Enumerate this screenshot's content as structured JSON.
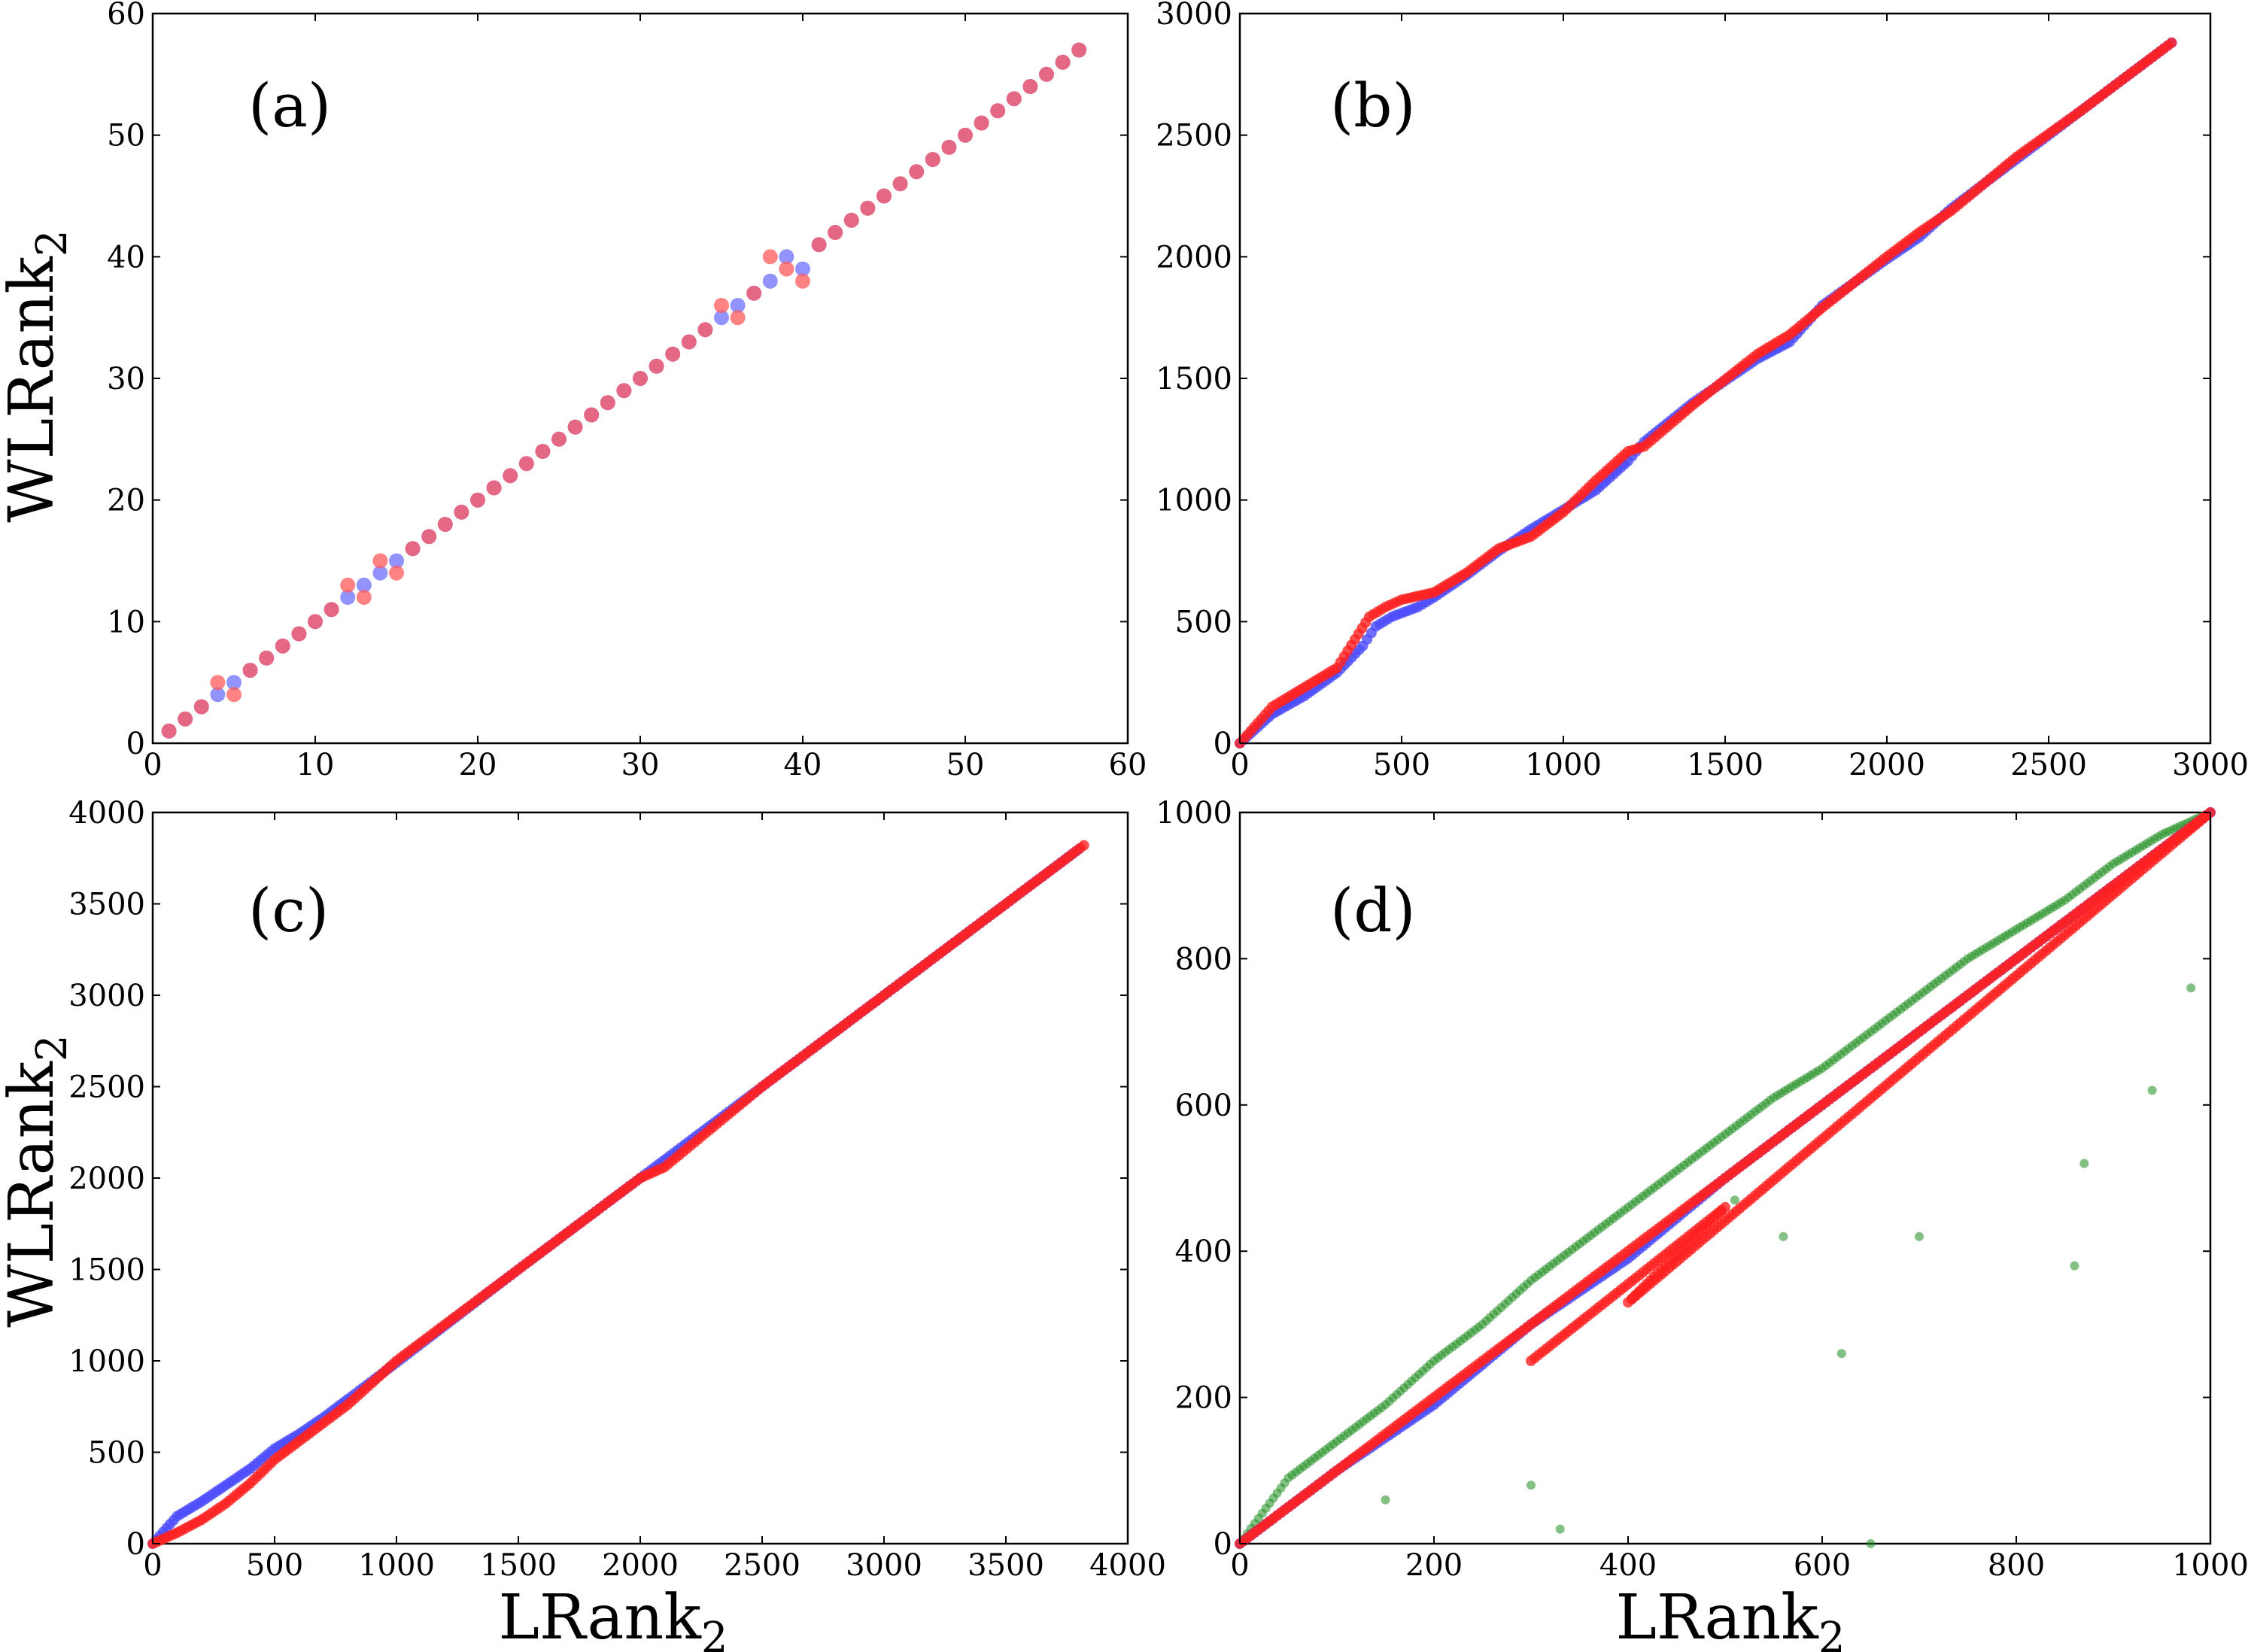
{
  "figure": {
    "ylabel": "WLRank",
    "ylabel_sub": "2",
    "xlabel": "LRank",
    "xlabel_sub": "2"
  },
  "colors": {
    "blue": "#4b4bff",
    "red": "#ff2020",
    "green": "#1e8c1e"
  },
  "chart_data": [
    {
      "id": "a",
      "label": "(a)",
      "type": "scatter",
      "xlim": [
        0,
        60
      ],
      "ylim": [
        0,
        60
      ],
      "xticks": [
        "0",
        "10",
        "20",
        "30",
        "40",
        "50",
        "60"
      ],
      "yticks": [
        "0",
        "10",
        "20",
        "30",
        "40",
        "50",
        "60"
      ],
      "series": [
        {
          "color": "#6f6fff",
          "points": [
            [
              1,
              1
            ],
            [
              2,
              2
            ],
            [
              3,
              3
            ],
            [
              4,
              4
            ],
            [
              5,
              5
            ],
            [
              6,
              6
            ],
            [
              7,
              7
            ],
            [
              8,
              8
            ],
            [
              9,
              9
            ],
            [
              10,
              10
            ],
            [
              11,
              11
            ],
            [
              12,
              12
            ],
            [
              13,
              13
            ],
            [
              14,
              14
            ],
            [
              15,
              15
            ],
            [
              16,
              16
            ],
            [
              17,
              17
            ],
            [
              18,
              18
            ],
            [
              19,
              19
            ],
            [
              20,
              20
            ],
            [
              21,
              21
            ],
            [
              22,
              22
            ],
            [
              23,
              23
            ],
            [
              24,
              24
            ],
            [
              25,
              25
            ],
            [
              26,
              26
            ],
            [
              27,
              27
            ],
            [
              28,
              28
            ],
            [
              29,
              29
            ],
            [
              30,
              30
            ],
            [
              31,
              31
            ],
            [
              32,
              32
            ],
            [
              33,
              33
            ],
            [
              34,
              34
            ],
            [
              35,
              35
            ],
            [
              36,
              36
            ],
            [
              37,
              37
            ],
            [
              38,
              38
            ],
            [
              39,
              40
            ],
            [
              40,
              39
            ],
            [
              41,
              41
            ],
            [
              42,
              42
            ],
            [
              43,
              43
            ],
            [
              44,
              44
            ],
            [
              45,
              45
            ],
            [
              46,
              46
            ],
            [
              47,
              47
            ],
            [
              48,
              48
            ],
            [
              49,
              49
            ],
            [
              50,
              50
            ],
            [
              51,
              51
            ],
            [
              52,
              52
            ],
            [
              53,
              53
            ],
            [
              54,
              54
            ],
            [
              55,
              55
            ],
            [
              56,
              56
            ],
            [
              57,
              57
            ]
          ]
        },
        {
          "color": "#ff5a5a",
          "points": [
            [
              1,
              1
            ],
            [
              2,
              2
            ],
            [
              3,
              3
            ],
            [
              4,
              5
            ],
            [
              5,
              4
            ],
            [
              6,
              6
            ],
            [
              7,
              7
            ],
            [
              8,
              8
            ],
            [
              9,
              9
            ],
            [
              10,
              10
            ],
            [
              11,
              11
            ],
            [
              12,
              13
            ],
            [
              13,
              12
            ],
            [
              14,
              15
            ],
            [
              15,
              14
            ],
            [
              16,
              16
            ],
            [
              17,
              17
            ],
            [
              18,
              18
            ],
            [
              19,
              19
            ],
            [
              20,
              20
            ],
            [
              21,
              21
            ],
            [
              22,
              22
            ],
            [
              23,
              23
            ],
            [
              24,
              24
            ],
            [
              25,
              25
            ],
            [
              26,
              26
            ],
            [
              27,
              27
            ],
            [
              28,
              28
            ],
            [
              29,
              29
            ],
            [
              30,
              30
            ],
            [
              31,
              31
            ],
            [
              32,
              32
            ],
            [
              33,
              33
            ],
            [
              34,
              34
            ],
            [
              35,
              36
            ],
            [
              36,
              35
            ],
            [
              37,
              37
            ],
            [
              38,
              40
            ],
            [
              39,
              39
            ],
            [
              40,
              38
            ],
            [
              41,
              41
            ],
            [
              42,
              42
            ],
            [
              43,
              43
            ],
            [
              44,
              44
            ],
            [
              45,
              45
            ],
            [
              46,
              46
            ],
            [
              47,
              47
            ],
            [
              48,
              48
            ],
            [
              49,
              49
            ],
            [
              50,
              50
            ],
            [
              51,
              51
            ],
            [
              52,
              52
            ],
            [
              53,
              53
            ],
            [
              54,
              54
            ],
            [
              55,
              55
            ],
            [
              56,
              56
            ],
            [
              57,
              57
            ]
          ]
        }
      ]
    },
    {
      "id": "b",
      "label": "(b)",
      "type": "scatter",
      "xlim": [
        0,
        3000
      ],
      "ylim": [
        0,
        3000
      ],
      "xticks": [
        "0",
        "500",
        "1000",
        "1500",
        "2000",
        "2500",
        "3000"
      ],
      "yticks": [
        "0",
        "500",
        "1000",
        "1500",
        "2000",
        "2500",
        "3000"
      ],
      "series": [
        {
          "color": "#4b4bff",
          "points": [
            [
              0,
              0
            ],
            [
              100,
              120
            ],
            [
              200,
              195
            ],
            [
              300,
              290
            ],
            [
              380,
              400
            ],
            [
              420,
              480
            ],
            [
              470,
              520
            ],
            [
              550,
              560
            ],
            [
              600,
              600
            ],
            [
              700,
              690
            ],
            [
              800,
              790
            ],
            [
              900,
              880
            ],
            [
              1000,
              960
            ],
            [
              1100,
              1040
            ],
            [
              1200,
              1160
            ],
            [
              1250,
              1240
            ],
            [
              1400,
              1400
            ],
            [
              1600,
              1580
            ],
            [
              1700,
              1650
            ],
            [
              1800,
              1800
            ],
            [
              2000,
              1990
            ],
            [
              2100,
              2080
            ],
            [
              2200,
              2200
            ],
            [
              2400,
              2400
            ],
            [
              2600,
              2600
            ],
            [
              2880,
              2880
            ]
          ]
        },
        {
          "color": "#ff2020",
          "points": [
            [
              0,
              0
            ],
            [
              100,
              150
            ],
            [
              200,
              230
            ],
            [
              300,
              310
            ],
            [
              400,
              520
            ],
            [
              450,
              560
            ],
            [
              500,
              590
            ],
            [
              600,
              620
            ],
            [
              700,
              700
            ],
            [
              800,
              800
            ],
            [
              900,
              850
            ],
            [
              1000,
              950
            ],
            [
              1100,
              1080
            ],
            [
              1200,
              1200
            ],
            [
              1250,
              1220
            ],
            [
              1400,
              1390
            ],
            [
              1600,
              1600
            ],
            [
              1700,
              1680
            ],
            [
              1800,
              1790
            ],
            [
              2000,
              2000
            ],
            [
              2100,
              2100
            ],
            [
              2200,
              2190
            ],
            [
              2400,
              2410
            ],
            [
              2600,
              2600
            ],
            [
              2880,
              2880
            ]
          ]
        }
      ]
    },
    {
      "id": "c",
      "label": "(c)",
      "type": "scatter",
      "xlim": [
        0,
        4000
      ],
      "ylim": [
        0,
        4000
      ],
      "xticks": [
        "0",
        "500",
        "1000",
        "1500",
        "2000",
        "2500",
        "3000",
        "3500",
        "4000"
      ],
      "yticks": [
        "0",
        "500",
        "1000",
        "1500",
        "2000",
        "2500",
        "3000",
        "3500",
        "4000"
      ],
      "series": [
        {
          "color": "#4b4bff",
          "points": [
            [
              0,
              0
            ],
            [
              100,
              150
            ],
            [
              200,
              230
            ],
            [
              300,
              320
            ],
            [
              400,
              410
            ],
            [
              500,
              520
            ],
            [
              600,
              600
            ],
            [
              700,
              690
            ],
            [
              800,
              790
            ],
            [
              1000,
              990
            ],
            [
              1500,
              1500
            ],
            [
              2000,
              2000
            ],
            [
              2500,
              2500
            ],
            [
              3000,
              3000
            ],
            [
              3500,
              3500
            ],
            [
              3800,
              3800
            ]
          ]
        },
        {
          "color": "#ff2020",
          "points": [
            [
              0,
              0
            ],
            [
              100,
              60
            ],
            [
              200,
              130
            ],
            [
              300,
              220
            ],
            [
              400,
              330
            ],
            [
              500,
              460
            ],
            [
              600,
              560
            ],
            [
              700,
              660
            ],
            [
              800,
              760
            ],
            [
              900,
              880
            ],
            [
              1000,
              1000
            ],
            [
              1500,
              1500
            ],
            [
              2000,
              2000
            ],
            [
              2100,
              2060
            ],
            [
              2500,
              2500
            ],
            [
              3000,
              3000
            ],
            [
              3500,
              3500
            ],
            [
              3820,
              3820
            ]
          ]
        }
      ]
    },
    {
      "id": "d",
      "label": "(d)",
      "type": "scatter",
      "xlim": [
        0,
        1000
      ],
      "ylim": [
        0,
        1000
      ],
      "xticks": [
        "0",
        "200",
        "400",
        "600",
        "800",
        "1000"
      ],
      "yticks": [
        "0",
        "200",
        "400",
        "600",
        "800",
        "1000"
      ],
      "series": [
        {
          "color": "#1e8c1e",
          "points": [
            [
              0,
              0
            ],
            [
              50,
              90
            ],
            [
              100,
              140
            ],
            [
              150,
              190
            ],
            [
              200,
              250
            ],
            [
              250,
              300
            ],
            [
              300,
              360
            ],
            [
              350,
              410
            ],
            [
              400,
              460
            ],
            [
              450,
              510
            ],
            [
              500,
              560
            ],
            [
              550,
              610
            ],
            [
              600,
              650
            ],
            [
              650,
              700
            ],
            [
              700,
              750
            ],
            [
              750,
              800
            ],
            [
              800,
              840
            ],
            [
              850,
              880
            ],
            [
              900,
              930
            ],
            [
              950,
              970
            ],
            [
              1000,
              1000
            ],
            [
              510,
              470
            ],
            [
              560,
              420
            ],
            [
              620,
              260
            ],
            [
              650,
              0
            ],
            [
              700,
              420
            ],
            [
              860,
              380
            ],
            [
              870,
              520
            ],
            [
              940,
              620
            ],
            [
              980,
              760
            ],
            [
              150,
              60
            ],
            [
              300,
              80
            ],
            [
              330,
              20
            ]
          ]
        },
        {
          "color": "#4b4bff",
          "points": [
            [
              0,
              0
            ],
            [
              100,
              100
            ],
            [
              200,
              190
            ],
            [
              300,
              300
            ],
            [
              400,
              390
            ],
            [
              500,
              500
            ],
            [
              600,
              600
            ],
            [
              700,
              700
            ],
            [
              800,
              800
            ],
            [
              900,
              900
            ],
            [
              1000,
              1000
            ]
          ]
        },
        {
          "color": "#ff2020",
          "points": [
            [
              0,
              0
            ],
            [
              100,
              100
            ],
            [
              200,
              200
            ],
            [
              300,
              300
            ],
            [
              400,
              400
            ],
            [
              500,
              500
            ],
            [
              600,
              600
            ],
            [
              700,
              700
            ],
            [
              800,
              800
            ],
            [
              900,
              900
            ],
            [
              1000,
              1000
            ],
            [
              400,
              330
            ],
            [
              500,
              460
            ],
            [
              300,
              250
            ]
          ]
        }
      ]
    }
  ]
}
